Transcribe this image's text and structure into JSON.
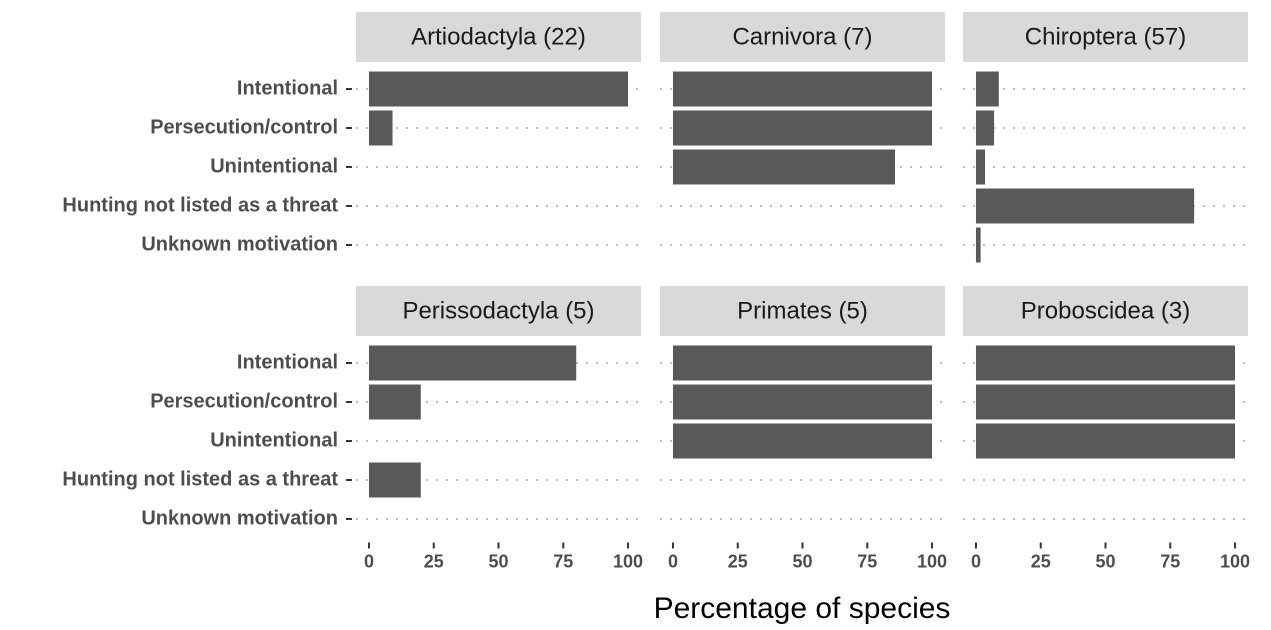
{
  "chart_data": {
    "type": "bar",
    "orientation": "horizontal",
    "xlabel": "Percentage of species",
    "color": "#595959",
    "categories": [
      "Intentional",
      "Persecution/control",
      "Unintentional",
      "Hunting not listed as a threat",
      "Unknown motivation"
    ],
    "xlim": [
      -5,
      105
    ],
    "xticks": [
      0,
      25,
      50,
      75,
      100
    ],
    "facets": [
      {
        "title": "Artiodactyla (22)",
        "values": [
          100,
          9.1,
          0,
          0,
          0
        ]
      },
      {
        "title": "Carnivora (7)",
        "values": [
          100,
          100,
          85.7,
          0,
          0
        ]
      },
      {
        "title": "Chiroptera (57)",
        "values": [
          8.8,
          7,
          3.5,
          84.2,
          1.8
        ]
      },
      {
        "title": "Perissodactyla (5)",
        "values": [
          80,
          20,
          0,
          20,
          0
        ]
      },
      {
        "title": "Primates (5)",
        "values": [
          100,
          100,
          100,
          0,
          0
        ]
      },
      {
        "title": "Proboscidea (3)",
        "values": [
          100,
          100,
          100,
          0,
          0
        ]
      }
    ]
  }
}
